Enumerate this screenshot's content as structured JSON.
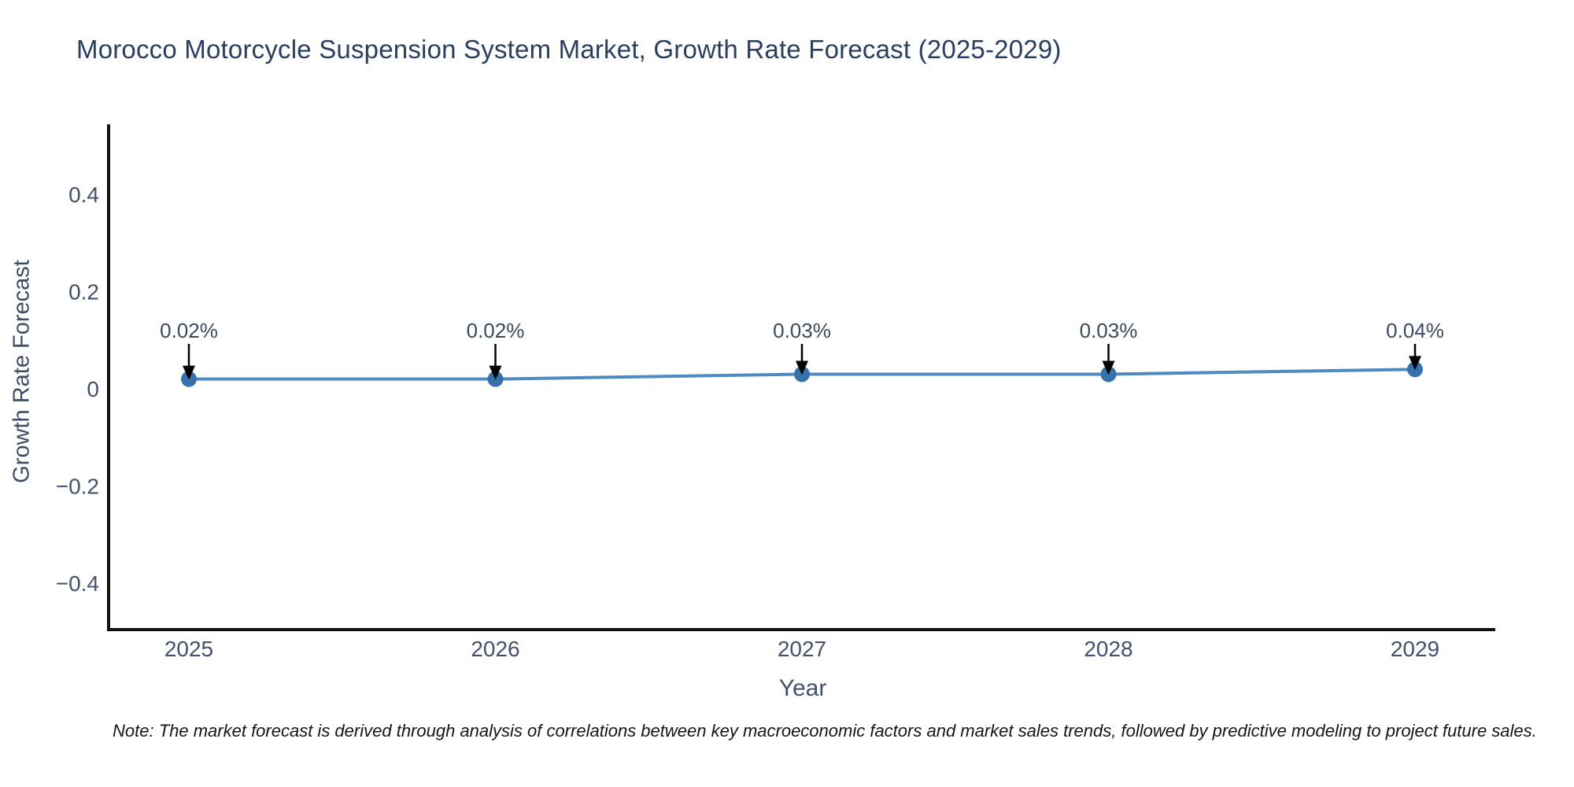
{
  "title": "Morocco Motorcycle Suspension System Market, Growth Rate Forecast (2025-2029)",
  "note": "Note: The market forecast is derived through analysis of correlations between key macroeconomic factors and market sales trends, followed by predictive modeling to project future sales.",
  "chart_data": {
    "type": "line",
    "title": "Morocco Motorcycle Suspension System Market, Growth Rate Forecast (2025-2029)",
    "xlabel": "Year",
    "ylabel": "Growth Rate Forecast",
    "x": [
      2025,
      2026,
      2027,
      2028,
      2029
    ],
    "xtick_labels": [
      "2025",
      "2026",
      "2027",
      "2028",
      "2029"
    ],
    "values": [
      0.02,
      0.02,
      0.03,
      0.03,
      0.04
    ],
    "point_labels": [
      "0.02%",
      "0.02%",
      "0.03%",
      "0.03%",
      "0.04%"
    ],
    "yticks": [
      0.4,
      0.2,
      0,
      -0.2,
      -0.4
    ],
    "ytick_labels": [
      "0.4",
      "0.2",
      "0",
      "−0.2",
      "−0.4"
    ],
    "ylim": [
      -0.5,
      0.55
    ],
    "grid": false,
    "legend_position": "none",
    "colors": {
      "line": "#4d8ac0",
      "marker": "#3571ad",
      "annotation_text": "#3b4a63",
      "annotation_arrow": "#000000",
      "spine": "#111111",
      "title_text": "#2a3f5f",
      "tick_text": "#42516d"
    }
  }
}
